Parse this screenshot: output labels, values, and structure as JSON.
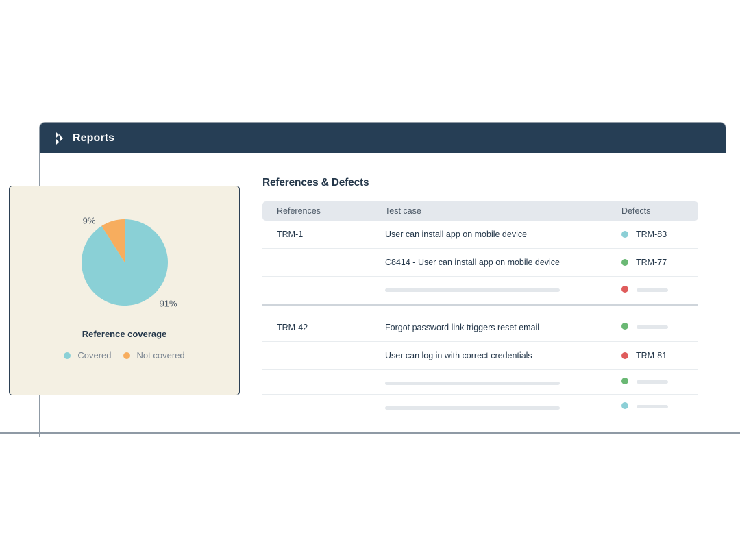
{
  "window": {
    "title": "Reports",
    "header_color": "#263e55"
  },
  "section": {
    "title": "References & Defects"
  },
  "table": {
    "columns": [
      "References",
      "Test case",
      "Defects"
    ],
    "rows": [
      {
        "reference": "TRM-1",
        "test_case": "User can install app on mobile device",
        "defect_status": "#8ccfd6",
        "defect": "TRM-83"
      },
      {
        "reference": "",
        "test_case": "C8414 - User can install app on mobile device",
        "defect_status": "#6ab874",
        "defect": "TRM-77"
      },
      {
        "reference": "",
        "test_case": "",
        "defect_status": "#df5c5c",
        "defect": ""
      },
      {
        "reference": "TRM-42",
        "test_case": "Forgot password link triggers reset email",
        "defect_status": "#6ab874",
        "defect": ""
      },
      {
        "reference": "",
        "test_case": "User can log in with correct credentials",
        "defect_status": "#df5c5c",
        "defect": "TRM-81"
      },
      {
        "reference": "",
        "test_case": "",
        "defect_status": "#6ab874",
        "defect": ""
      },
      {
        "reference": "",
        "test_case": "",
        "defect_status": "#8ccfd6",
        "defect": ""
      }
    ]
  },
  "coverage_card": {
    "title": "Reference coverage",
    "legend": [
      {
        "label": "Covered",
        "color": "#8ad0d6"
      },
      {
        "label": "Not covered",
        "color": "#f7ad5e"
      }
    ]
  },
  "chart_data": {
    "type": "pie",
    "title": "Reference coverage",
    "categories": [
      "Covered",
      "Not covered"
    ],
    "values": [
      91,
      9
    ],
    "labels": [
      "91%",
      "9%"
    ],
    "colors": [
      "#8ad0d6",
      "#f7ad5e"
    ]
  }
}
